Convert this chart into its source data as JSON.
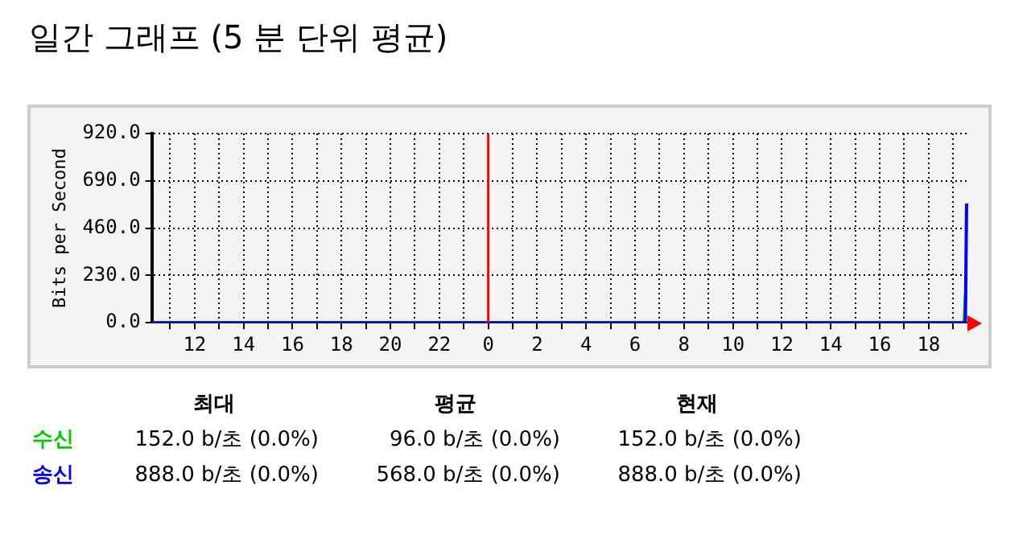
{
  "chart_data": {
    "type": "line",
    "title": "일간 그래프 (5 분 단위 평균)",
    "ylabel": "Bits per Second",
    "xlim": [
      "--01-01T10:15",
      "--01-02T19:39"
    ],
    "ylim": [
      0,
      920
    ],
    "xticks": [
      {
        "value": "--01-01T11:00",
        "label": null
      },
      {
        "value": "--01-01T12:00",
        "label": "12"
      },
      {
        "value": "--01-01T13:00",
        "label": null
      },
      {
        "value": "--01-01T14:00",
        "label": "14"
      },
      {
        "value": "--01-01T15:00",
        "label": null
      },
      {
        "value": "--01-01T16:00",
        "label": "16"
      },
      {
        "value": "--01-01T17:00",
        "label": null
      },
      {
        "value": "--01-01T18:00",
        "label": "18"
      },
      {
        "value": "--01-01T19:00",
        "label": null
      },
      {
        "value": "--01-01T20:00",
        "label": "20"
      },
      {
        "value": "--01-01T21:00",
        "label": null
      },
      {
        "value": "--01-01T22:00",
        "label": "22"
      },
      {
        "value": "--01-01T23:00",
        "label": null
      },
      {
        "value": "--01-02T00:00",
        "label": "0"
      },
      {
        "value": "--01-02T01:00",
        "label": null
      },
      {
        "value": "--01-02T02:00",
        "label": "2"
      },
      {
        "value": "--01-02T03:00",
        "label": null
      },
      {
        "value": "--01-02T04:00",
        "label": "4"
      },
      {
        "value": "--01-02T05:00",
        "label": null
      },
      {
        "value": "--01-02T06:00",
        "label": "6"
      },
      {
        "value": "--01-02T07:00",
        "label": null
      },
      {
        "value": "--01-02T08:00",
        "label": "8"
      },
      {
        "value": "--01-02T09:00",
        "label": null
      },
      {
        "value": "--01-02T10:00",
        "label": "10"
      },
      {
        "value": "--01-02T11:00",
        "label": null
      },
      {
        "value": "--01-02T12:00",
        "label": "12"
      },
      {
        "value": "--01-02T13:00",
        "label": null
      },
      {
        "value": "--01-02T14:00",
        "label": "14"
      },
      {
        "value": "--01-02T15:00",
        "label": null
      },
      {
        "value": "--01-02T16:00",
        "label": "16"
      },
      {
        "value": "--01-02T17:00",
        "label": null
      },
      {
        "value": "--01-02T18:00",
        "label": "18"
      },
      {
        "value": "--01-02T19:00",
        "label": null
      }
    ],
    "yticks": [
      {
        "value": 0,
        "label": "0.0"
      },
      {
        "value": 230,
        "label": "230.0"
      },
      {
        "value": 460,
        "label": "460.0"
      },
      {
        "value": 690,
        "label": "690.0"
      },
      {
        "value": 920,
        "label": "920.0"
      }
    ],
    "grid": true,
    "legend": false,
    "series": [
      {
        "name": "수신",
        "type": "area",
        "color": "#00cc00",
        "x": [
          "--01-01T10:15",
          "--01-02T19:27",
          "--01-02T19:30",
          "--01-02T19:33"
        ],
        "values": [
          0,
          0,
          135,
          135
        ]
      },
      {
        "name": "송신",
        "type": "line",
        "color": "#0000ff",
        "x": [
          "--01-01T10:15",
          "--01-02T19:30",
          "--01-02T19:33"
        ],
        "values": [
          0,
          0,
          580
        ]
      }
    ],
    "ref_lines": [
      {
        "axis": "x",
        "value": "--01-02T00:00",
        "color": "#ff0000"
      }
    ],
    "annotations": [
      "최대",
      "평균",
      "현재",
      "152.0 b/초 (0.0%)",
      "96.0 b/초 (0.0%)",
      "152.0 b/초 (0.0%)",
      "888.0 b/초 (0.0%)",
      "568.0 b/초 (0.0%)",
      "888.0 b/초 (0.0%)"
    ]
  }
}
